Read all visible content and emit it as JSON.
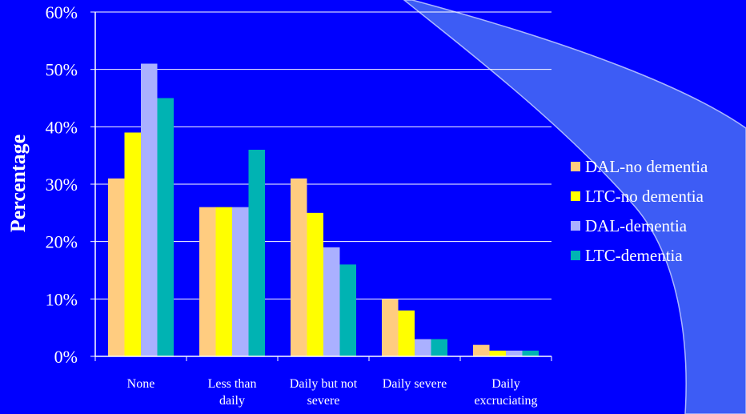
{
  "chart_data": {
    "type": "bar",
    "ylabel": "Percentage",
    "xlabel": "",
    "title": "",
    "ylim": [
      0,
      60
    ],
    "y_ticks": [
      "0%",
      "10%",
      "20%",
      "30%",
      "40%",
      "50%",
      "60%"
    ],
    "y_tick_values": [
      0,
      10,
      20,
      30,
      40,
      50,
      60
    ],
    "categories": [
      [
        "None"
      ],
      [
        "Less than",
        "daily"
      ],
      [
        "Daily but not",
        "severe"
      ],
      [
        "Daily severe"
      ],
      [
        "Daily",
        "excruciating"
      ]
    ],
    "series": [
      {
        "name": "DAL-no dementia",
        "color": "#ffcc80",
        "values": [
          31,
          26,
          31,
          10,
          2
        ]
      },
      {
        "name": "LTC-no dementia",
        "color": "#ffff00",
        "values": [
          39,
          26,
          25,
          8,
          1
        ]
      },
      {
        "name": "DAL-dementia",
        "color": "#aab0ff",
        "values": [
          51,
          26,
          19,
          3,
          1
        ]
      },
      {
        "name": "LTC-dementia",
        "color": "#00b3b3",
        "values": [
          45,
          36,
          16,
          3,
          1
        ]
      }
    ],
    "grid": true,
    "legend_position": "right"
  },
  "decoration": {
    "background": "#0000ff",
    "swoosh": "#3d5cf5"
  }
}
